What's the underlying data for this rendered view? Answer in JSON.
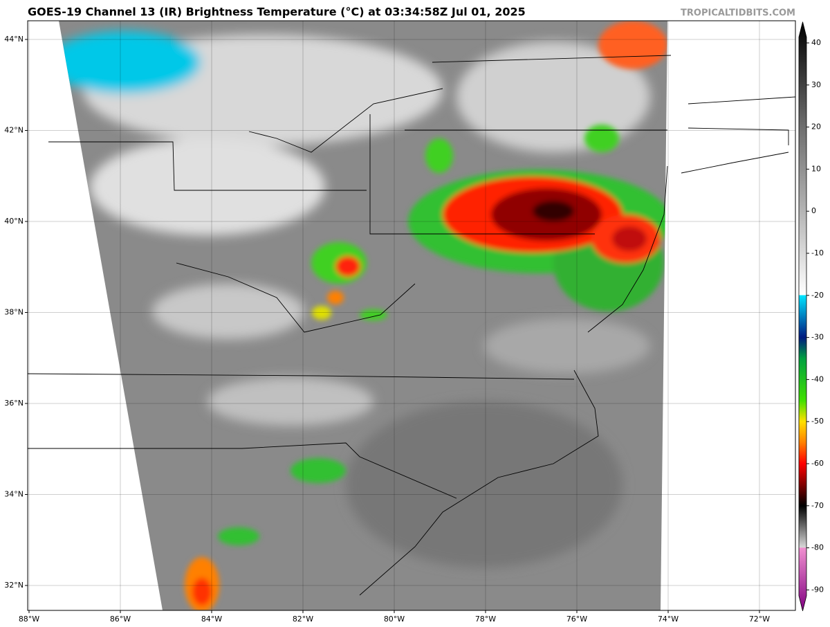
{
  "header": {
    "title": "GOES-19 Channel 13 (IR) Brightness Temperature (°C) at 03:34:58Z Jul 01, 2025",
    "watermark": "TROPICALTIDBITS.COM"
  },
  "map": {
    "lon_ticks": [
      {
        "value": -88,
        "label": "88°W"
      },
      {
        "value": -86,
        "label": "86°W"
      },
      {
        "value": -84,
        "label": "84°W"
      },
      {
        "value": -82,
        "label": "82°W"
      },
      {
        "value": -80,
        "label": "80°W"
      },
      {
        "value": -78,
        "label": "78°W"
      },
      {
        "value": -76,
        "label": "76°W"
      },
      {
        "value": -74,
        "label": "74°W"
      },
      {
        "value": -72,
        "label": "72°W"
      }
    ],
    "lat_ticks": [
      {
        "value": 44,
        "label": "44°N"
      },
      {
        "value": 42,
        "label": "42°N"
      },
      {
        "value": 40,
        "label": "40°N"
      },
      {
        "value": 38,
        "label": "38°N"
      },
      {
        "value": 36,
        "label": "36°N"
      },
      {
        "value": 34,
        "label": "34°N"
      },
      {
        "value": 32,
        "label": "32°N"
      }
    ],
    "colorbar": {
      "range": [
        -95,
        45
      ],
      "ticks": [
        40,
        30,
        20,
        10,
        0,
        -10,
        -20,
        -30,
        -40,
        -50,
        -60,
        -70,
        -80,
        -90
      ],
      "stops": [
        {
          "value": 45,
          "color": "#000000"
        },
        {
          "value": 20,
          "color": "#6e6e6e"
        },
        {
          "value": 0,
          "color": "#b4b4b4"
        },
        {
          "value": -19.9,
          "color": "#ffffff"
        },
        {
          "value": -20,
          "color": "#00e5ff"
        },
        {
          "value": -30,
          "color": "#001a80"
        },
        {
          "value": -35,
          "color": "#00a040"
        },
        {
          "value": -45,
          "color": "#40e000"
        },
        {
          "value": -50,
          "color": "#ffe000"
        },
        {
          "value": -55,
          "color": "#ff8000"
        },
        {
          "value": -60,
          "color": "#ff0000"
        },
        {
          "value": -65,
          "color": "#800000"
        },
        {
          "value": -70,
          "color": "#000000"
        },
        {
          "value": -79.9,
          "color": "#d8d8d8"
        },
        {
          "value": -80,
          "color": "#f090d0"
        },
        {
          "value": -95,
          "color": "#800080"
        }
      ]
    }
  }
}
